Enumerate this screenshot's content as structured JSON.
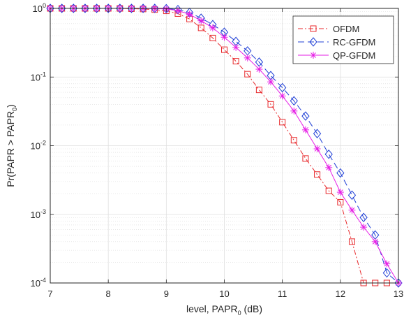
{
  "chart_data": {
    "type": "line",
    "xlabel": "level, PAPR",
    "xlabel_sub": "0",
    "xlabel_unit": " (dB)",
    "ylabel": "Pr(PAPR > PAPR",
    "ylabel_sub": "0",
    "ylabel_end": ")",
    "xlim": [
      7,
      13
    ],
    "ylim": [
      0.0001,
      1
    ],
    "yscale": "log",
    "xticks": [
      "7",
      "8",
      "9",
      "10",
      "11",
      "12",
      "13"
    ],
    "yticks": [
      {
        "base": "10",
        "exp": "0"
      },
      {
        "base": "10",
        "exp": "-1"
      },
      {
        "base": "10",
        "exp": "-2"
      },
      {
        "base": "10",
        "exp": "-3"
      },
      {
        "base": "10",
        "exp": "-4"
      }
    ],
    "grid": true,
    "legend_position": "top-right",
    "series": [
      {
        "name": "OFDM",
        "color": "#e8292c",
        "marker": "square",
        "dash": "dash-dot",
        "points": [
          [
            7.0,
            1
          ],
          [
            7.2,
            1
          ],
          [
            7.4,
            1
          ],
          [
            7.6,
            1
          ],
          [
            7.8,
            1
          ],
          [
            8.0,
            1
          ],
          [
            8.2,
            1
          ],
          [
            8.4,
            0.99
          ],
          [
            8.6,
            0.98
          ],
          [
            8.8,
            0.96
          ],
          [
            9.0,
            0.92
          ],
          [
            9.2,
            0.84
          ],
          [
            9.4,
            0.7
          ],
          [
            9.6,
            0.52
          ],
          [
            9.8,
            0.37
          ],
          [
            10.0,
            0.25
          ],
          [
            10.2,
            0.17
          ],
          [
            10.4,
            0.11
          ],
          [
            10.6,
            0.065
          ],
          [
            10.8,
            0.04
          ],
          [
            11.0,
            0.022
          ],
          [
            11.2,
            0.012
          ],
          [
            11.4,
            0.0065
          ],
          [
            11.6,
            0.0038
          ],
          [
            11.8,
            0.0022
          ],
          [
            12.0,
            0.0015
          ],
          [
            12.2,
            0.0004
          ],
          [
            12.4,
            0.0001
          ],
          [
            12.6,
            0.0001
          ],
          [
            12.8,
            0.0001
          ]
        ]
      },
      {
        "name": "RC-GFDM",
        "color": "#1f3fd6",
        "marker": "diamond",
        "dash": "dashed",
        "points": [
          [
            7.0,
            1
          ],
          [
            7.2,
            1
          ],
          [
            7.4,
            1
          ],
          [
            7.6,
            1
          ],
          [
            7.8,
            1
          ],
          [
            8.0,
            1
          ],
          [
            8.2,
            1
          ],
          [
            8.4,
            1
          ],
          [
            8.6,
            1
          ],
          [
            8.8,
            1
          ],
          [
            9.0,
            0.99
          ],
          [
            9.2,
            0.96
          ],
          [
            9.4,
            0.87
          ],
          [
            9.6,
            0.72
          ],
          [
            9.8,
            0.58
          ],
          [
            10.0,
            0.45
          ],
          [
            10.2,
            0.33
          ],
          [
            10.4,
            0.24
          ],
          [
            10.6,
            0.165
          ],
          [
            10.8,
            0.105
          ],
          [
            11.0,
            0.07
          ],
          [
            11.2,
            0.045
          ],
          [
            11.4,
            0.027
          ],
          [
            11.6,
            0.015
          ],
          [
            11.8,
            0.0075
          ],
          [
            12.0,
            0.004
          ],
          [
            12.2,
            0.0019
          ],
          [
            12.4,
            0.0009
          ],
          [
            12.6,
            0.0005
          ],
          [
            12.8,
            0.00014
          ],
          [
            13.0,
            0.0001
          ]
        ]
      },
      {
        "name": "QP-GFDM",
        "color": "#e61ee6",
        "marker": "asterisk",
        "dash": "solid",
        "points": [
          [
            7.0,
            1
          ],
          [
            7.2,
            1
          ],
          [
            7.4,
            1
          ],
          [
            7.6,
            1
          ],
          [
            7.8,
            1
          ],
          [
            8.0,
            1
          ],
          [
            8.2,
            1
          ],
          [
            8.4,
            1
          ],
          [
            8.6,
            1
          ],
          [
            8.8,
            0.99
          ],
          [
            9.0,
            0.98
          ],
          [
            9.2,
            0.93
          ],
          [
            9.4,
            0.82
          ],
          [
            9.6,
            0.66
          ],
          [
            9.8,
            0.52
          ],
          [
            10.0,
            0.38
          ],
          [
            10.2,
            0.27
          ],
          [
            10.4,
            0.19
          ],
          [
            10.6,
            0.13
          ],
          [
            10.8,
            0.085
          ],
          [
            11.0,
            0.053
          ],
          [
            11.2,
            0.032
          ],
          [
            11.4,
            0.017
          ],
          [
            11.6,
            0.009
          ],
          [
            11.8,
            0.0048
          ],
          [
            12.0,
            0.0021
          ],
          [
            12.2,
            0.00115
          ],
          [
            12.4,
            0.00065
          ],
          [
            12.6,
            0.0004
          ],
          [
            12.8,
            0.00019
          ],
          [
            13.0,
            0.0001
          ]
        ]
      }
    ]
  }
}
